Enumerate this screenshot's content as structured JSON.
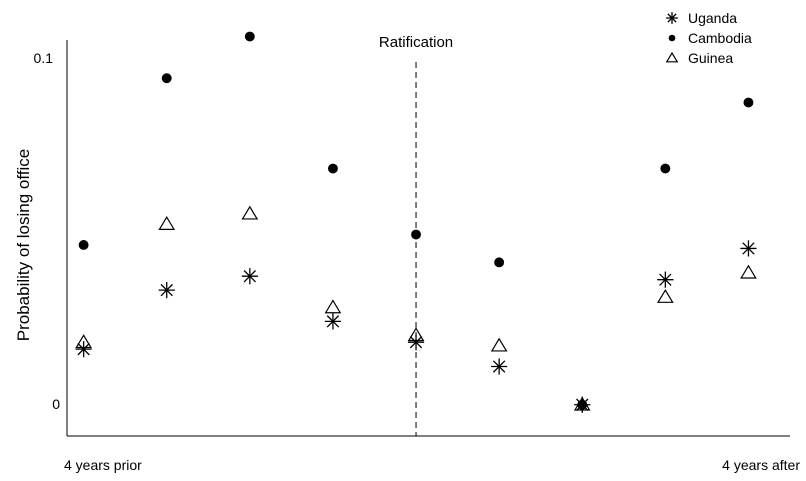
{
  "chart_data": {
    "type": "scatter",
    "title": "",
    "xlabel": "",
    "ylabel": "Probability of losing office",
    "x_tick_labels": [
      "4 years prior",
      "4 years after"
    ],
    "y_ticks": [
      {
        "value": 0,
        "label": "0"
      },
      {
        "value": 0.1,
        "label": "0.1"
      }
    ],
    "x": [
      -4,
      -3,
      -2,
      -1,
      0,
      1,
      2,
      3,
      4
    ],
    "xlim": [
      -4.2,
      4.5
    ],
    "ylim": [
      -0.009,
      0.105
    ],
    "grid": false,
    "legend_position": "top-right",
    "annotation": {
      "label": "Ratification",
      "x": 0,
      "style": "dashed"
    },
    "series": [
      {
        "name": "Uganda",
        "marker": "asterisk",
        "values": [
          0.016,
          0.033,
          0.037,
          0.024,
          0.018,
          0.011,
          0.0,
          0.036,
          0.045
        ]
      },
      {
        "name": "Cambodia",
        "marker": "dot",
        "values": [
          0.046,
          0.094,
          0.106,
          0.068,
          0.049,
          0.041,
          0.0,
          0.068,
          0.087
        ]
      },
      {
        "name": "Guinea",
        "marker": "triangle",
        "values": [
          0.018,
          0.052,
          0.055,
          0.028,
          0.02,
          0.017,
          0.0,
          0.031,
          0.038
        ]
      }
    ],
    "colors": {
      "marker": "#000000",
      "axis": "#000000"
    }
  }
}
